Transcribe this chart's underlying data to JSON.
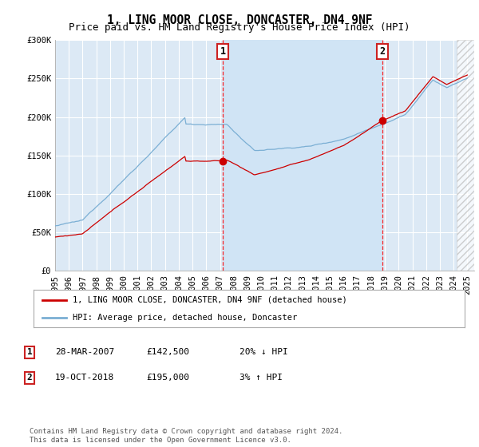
{
  "title": "1, LING MOOR CLOSE, DONCASTER, DN4 9NF",
  "subtitle": "Price paid vs. HM Land Registry's House Price Index (HPI)",
  "ylim": [
    0,
    300000
  ],
  "yticks": [
    0,
    50000,
    100000,
    150000,
    200000,
    250000,
    300000
  ],
  "ytick_labels": [
    "£0",
    "£50K",
    "£100K",
    "£150K",
    "£200K",
    "£250K",
    "£300K"
  ],
  "bg_color": "#dce9f5",
  "grid_color": "#ffffff",
  "red_line_color": "#cc0000",
  "blue_line_color": "#7bafd4",
  "highlight_color": "#d0e4f5",
  "sale1_year": 2007.22,
  "sale1_price": 142500,
  "sale2_year": 2018.8,
  "sale2_price": 195000,
  "legend_red": "1, LING MOOR CLOSE, DONCASTER, DN4 9NF (detached house)",
  "legend_blue": "HPI: Average price, detached house, Doncaster",
  "table": [
    {
      "num": "1",
      "date": "28-MAR-2007",
      "price": "£142,500",
      "hpi": "20% ↓ HPI"
    },
    {
      "num": "2",
      "date": "19-OCT-2018",
      "price": "£195,000",
      "hpi": "3% ↑ HPI"
    }
  ],
  "footer": "Contains HM Land Registry data © Crown copyright and database right 2024.\nThis data is licensed under the Open Government Licence v3.0.",
  "title_fontsize": 10.5,
  "subtitle_fontsize": 9,
  "tick_fontsize": 7.5,
  "legend_fontsize": 7.5,
  "table_fontsize": 8,
  "footer_fontsize": 6.5
}
